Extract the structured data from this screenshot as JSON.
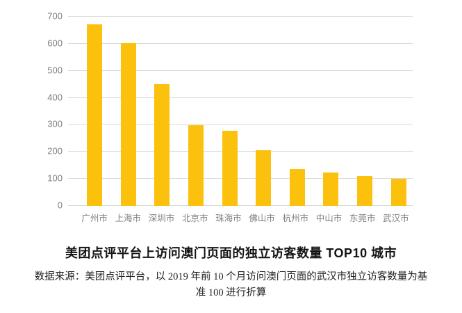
{
  "chart_data": {
    "type": "bar",
    "categories": [
      "广州市",
      "上海市",
      "深圳市",
      "北京市",
      "珠海市",
      "佛山市",
      "杭州市",
      "中山市",
      "东莞市",
      "武汉市"
    ],
    "values": [
      670,
      600,
      450,
      297,
      278,
      205,
      135,
      122,
      110,
      100
    ],
    "title": "美团点评平台上访问澳门页面的独立访客数量 TOP10 城市",
    "xlabel": "",
    "ylabel": "",
    "ylim": [
      0,
      700
    ],
    "yticks": [
      0,
      100,
      200,
      300,
      400,
      500,
      600,
      700
    ],
    "grid": true,
    "legend": false,
    "bar_color": "#FCC10D",
    "gridline_color": "#D9D9D9",
    "axis_label_color": "#7F7F7F"
  },
  "caption": {
    "title": "美团点评平台上访问澳门页面的独立访客数量 TOP10 城市",
    "source_line1": "数据来源：美团点评平台，以 2019 年前 10 个月访问澳门页面的武汉市独立访客数量为基",
    "source_line2": "准 100 进行折算"
  }
}
